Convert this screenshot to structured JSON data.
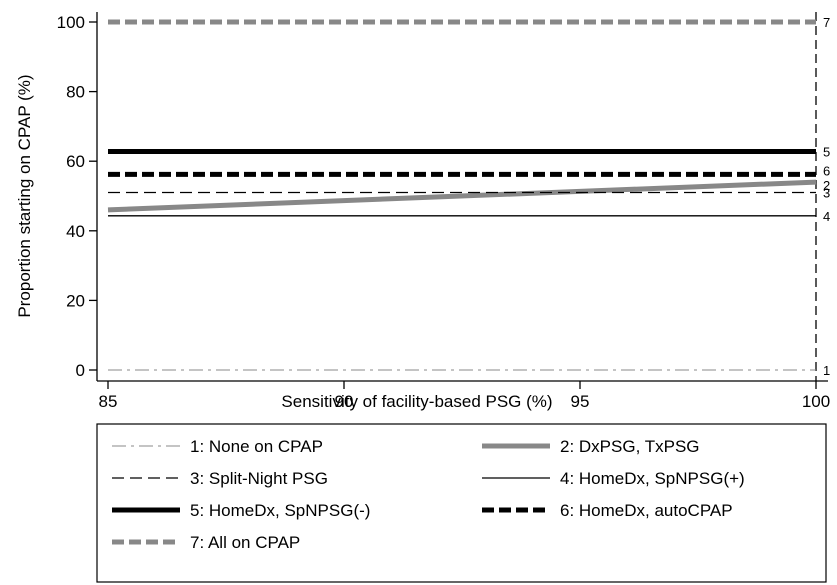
{
  "chart_data": {
    "type": "line",
    "title": "",
    "xlabel": "Sensitivity of facility-based PSG (%)",
    "ylabel": "Proportion starting on CPAP (%)",
    "xlim": [
      85,
      100
    ],
    "ylim": [
      0,
      100
    ],
    "x_ticks": [
      "85",
      "90",
      "95",
      "100"
    ],
    "y_ticks": [
      "0",
      "20",
      "40",
      "60",
      "80",
      "100"
    ],
    "grid": false,
    "legend_position": "bottom",
    "reference_line_x": 100,
    "series": [
      {
        "name": "1: None on CPAP",
        "end_label": "1",
        "x": [
          85,
          100
        ],
        "y": [
          0,
          0
        ],
        "style": "dashdot",
        "color": "#888888",
        "width": 1
      },
      {
        "name": "2: DxPSG, TxPSG",
        "end_label": "2",
        "x": [
          85,
          100
        ],
        "y": [
          46,
          54
        ],
        "style": "solid",
        "color": "#888888",
        "width": 5
      },
      {
        "name": "3: Split-Night PSG",
        "end_label": "3",
        "x": [
          85,
          100
        ],
        "y": [
          51,
          51
        ],
        "style": "dashed",
        "color": "#000000",
        "width": 1.3
      },
      {
        "name": "4: HomeDx, SpNPSG(+)",
        "end_label": "4",
        "x": [
          85,
          100
        ],
        "y": [
          44.3,
          44.3
        ],
        "style": "solid",
        "color": "#000000",
        "width": 1.3
      },
      {
        "name": "5: HomeDx, SpNPSG(-)",
        "end_label": "5",
        "x": [
          85,
          100
        ],
        "y": [
          62.8,
          62.8
        ],
        "style": "solid",
        "color": "#000000",
        "width": 5
      },
      {
        "name": "6: HomeDx, autoCPAP",
        "end_label": "6",
        "x": [
          85,
          100
        ],
        "y": [
          56.2,
          56.2
        ],
        "style": "dashed-bold",
        "color": "#000000",
        "width": 5
      },
      {
        "name": "7: All on CPAP",
        "end_label": "7",
        "x": [
          85,
          100
        ],
        "y": [
          100,
          100
        ],
        "style": "dashed-bold",
        "color": "#888888",
        "width": 5
      }
    ]
  }
}
